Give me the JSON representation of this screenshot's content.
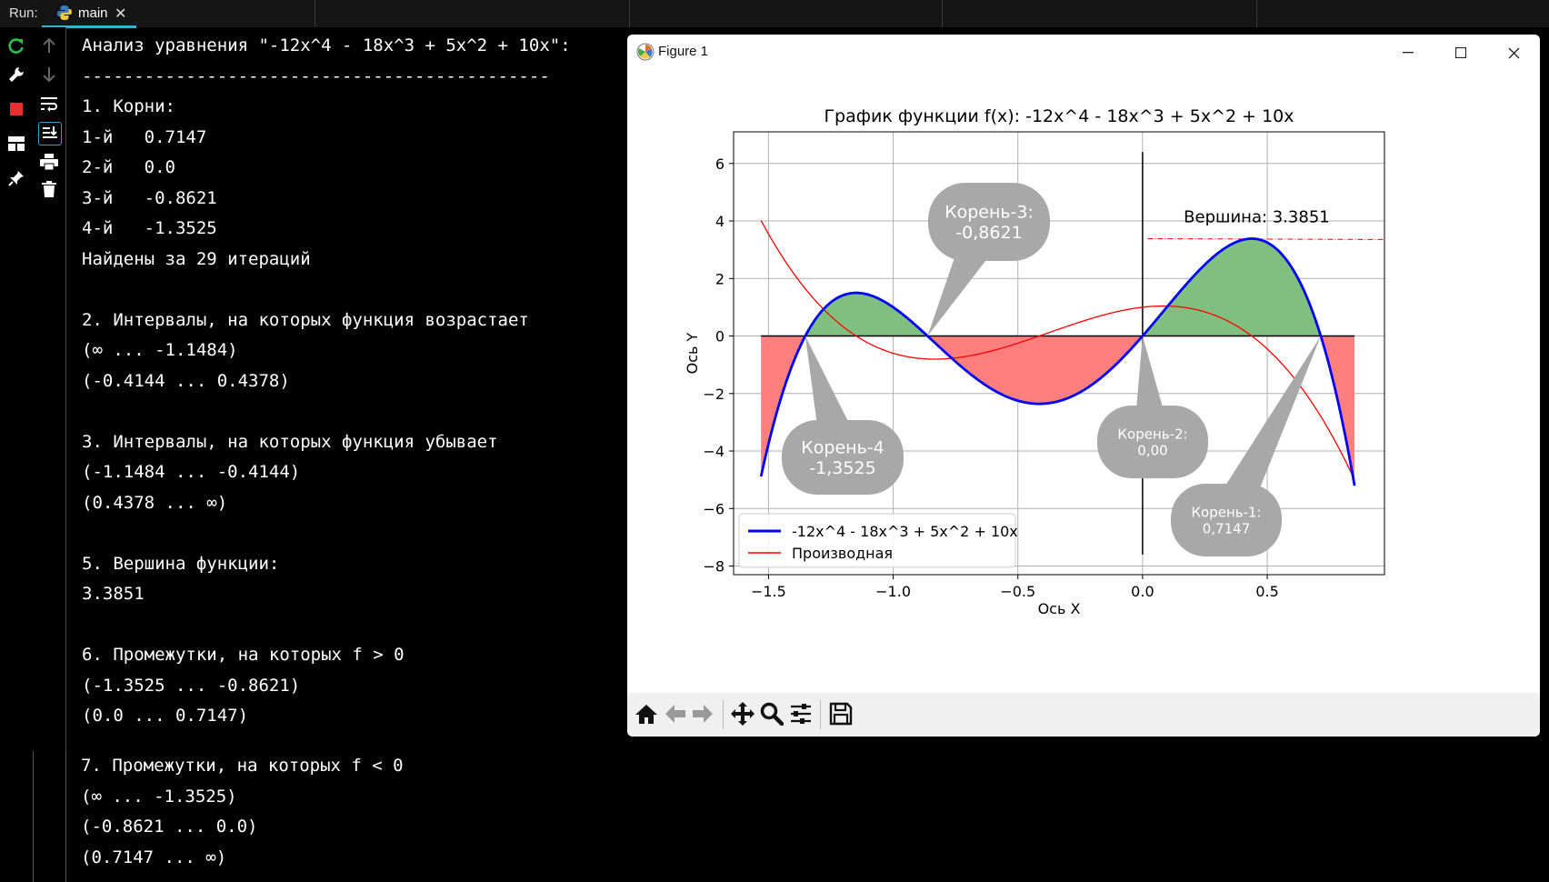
{
  "runbar": {
    "label": "Run:",
    "tab_label": "main",
    "tab_close": "✕"
  },
  "tools_left": [
    {
      "name": "rerun-icon"
    },
    {
      "name": "wrench-icon"
    },
    {
      "name": "stop-icon"
    },
    {
      "name": "layout-icon"
    },
    {
      "name": "pin-icon"
    }
  ],
  "tools_right": [
    {
      "name": "arrow-up-icon"
    },
    {
      "name": "arrow-down-icon"
    },
    {
      "name": "soft-wrap-icon"
    },
    {
      "name": "scroll-to-end-icon"
    },
    {
      "name": "print-icon"
    },
    {
      "name": "trash-icon"
    }
  ],
  "console": {
    "lines": [
      "Анализ уравнения \"-12x^4 - 18x^3 + 5x^2 + 10x\":",
      "---------------------------------------------",
      "1. Корни:",
      "1-й   0.7147",
      "2-й   0.0",
      "3-й   -0.8621",
      "4-й   -1.3525",
      "Найдены за 29 итераций",
      "",
      "2. Интервалы, на которых функция возрастает",
      "(∞ ... -1.1484)",
      "(-0.4144 ... 0.4378)",
      "",
      "3. Интервалы, на которых функция убывает",
      "(-1.1484 ... -0.4144)",
      "(0.4378 ... ∞)",
      "",
      "5. Вершина функции:",
      "3.3851",
      "",
      "6. Промежутки, на которых f > 0",
      "(-1.3525 ... -0.8621)",
      "(0.0 ... 0.7147)"
    ],
    "lines_lower": [
      "7. Промежутки, на которых f < 0",
      "(∞ ... -1.3525)",
      "(-0.8621 ... 0.0)",
      "(0.7147 ... ∞)"
    ]
  },
  "figure": {
    "window_title": "Figure 1",
    "nav_buttons": [
      "home-icon",
      "back-icon",
      "forward-icon",
      "pan-icon",
      "zoom-icon",
      "configure-subplots-icon",
      "save-icon"
    ]
  },
  "colors": {
    "function_line": "#0000ff",
    "derivative_line": "#ff0000",
    "positive_fill": "#7fbf7f",
    "negative_fill": "#ff7f7f",
    "callout": "#a8a8a8",
    "tab_accent": "#2fb4d6"
  },
  "chart_data": {
    "type": "line",
    "title": "График функции f(x): -12x^4 - 18x^3 + 5x^2 + 10x",
    "xlabel": "Ось X",
    "ylabel": "Ось Y",
    "xlim": [
      -1.64,
      0.97
    ],
    "ylim": [
      -8.3,
      7.1
    ],
    "xticks": [
      -1.5,
      -1.0,
      -0.5,
      0.0,
      0.5
    ],
    "xtick_labels": [
      "−1.5",
      "−1.0",
      "−0.5",
      "0.0",
      "0.5"
    ],
    "yticks": [
      -8,
      -6,
      -4,
      -2,
      0,
      2,
      4,
      6
    ],
    "ytick_labels": [
      "−8",
      "−6",
      "−4",
      "−2",
      "0",
      "2",
      "4",
      "6"
    ],
    "grid": true,
    "x_range": [
      -1.53,
      0.85
    ],
    "series": [
      {
        "name": "-12x^4 - 18x^3 + 5x^2 + 10x",
        "formula": "-12x^4 - 18x^3 + 5x^2 + 10x",
        "color": "#0000ff"
      },
      {
        "name": "Производная",
        "formula": "-48x^3 - 54x^2 + 10x + 10",
        "color": "#ff0000",
        "display_scale": 0.1
      }
    ],
    "legend": "lower-left",
    "vertex": {
      "label": "Вершина: 3.3851",
      "y": 3.3851
    },
    "vertical_line_x": 0.0,
    "callouts": [
      {
        "label_1": "Корень-3:",
        "label_2": "-0,8621",
        "root": -0.8621
      },
      {
        "label_1": "Корень-4",
        "label_2": "-1,3525",
        "root": -1.3525
      },
      {
        "label_1": "Корень-2:",
        "label_2": "0,00",
        "root": 0.0
      },
      {
        "label_1": "Корень-1:",
        "label_2": "0,7147",
        "root": 0.7147
      }
    ]
  }
}
